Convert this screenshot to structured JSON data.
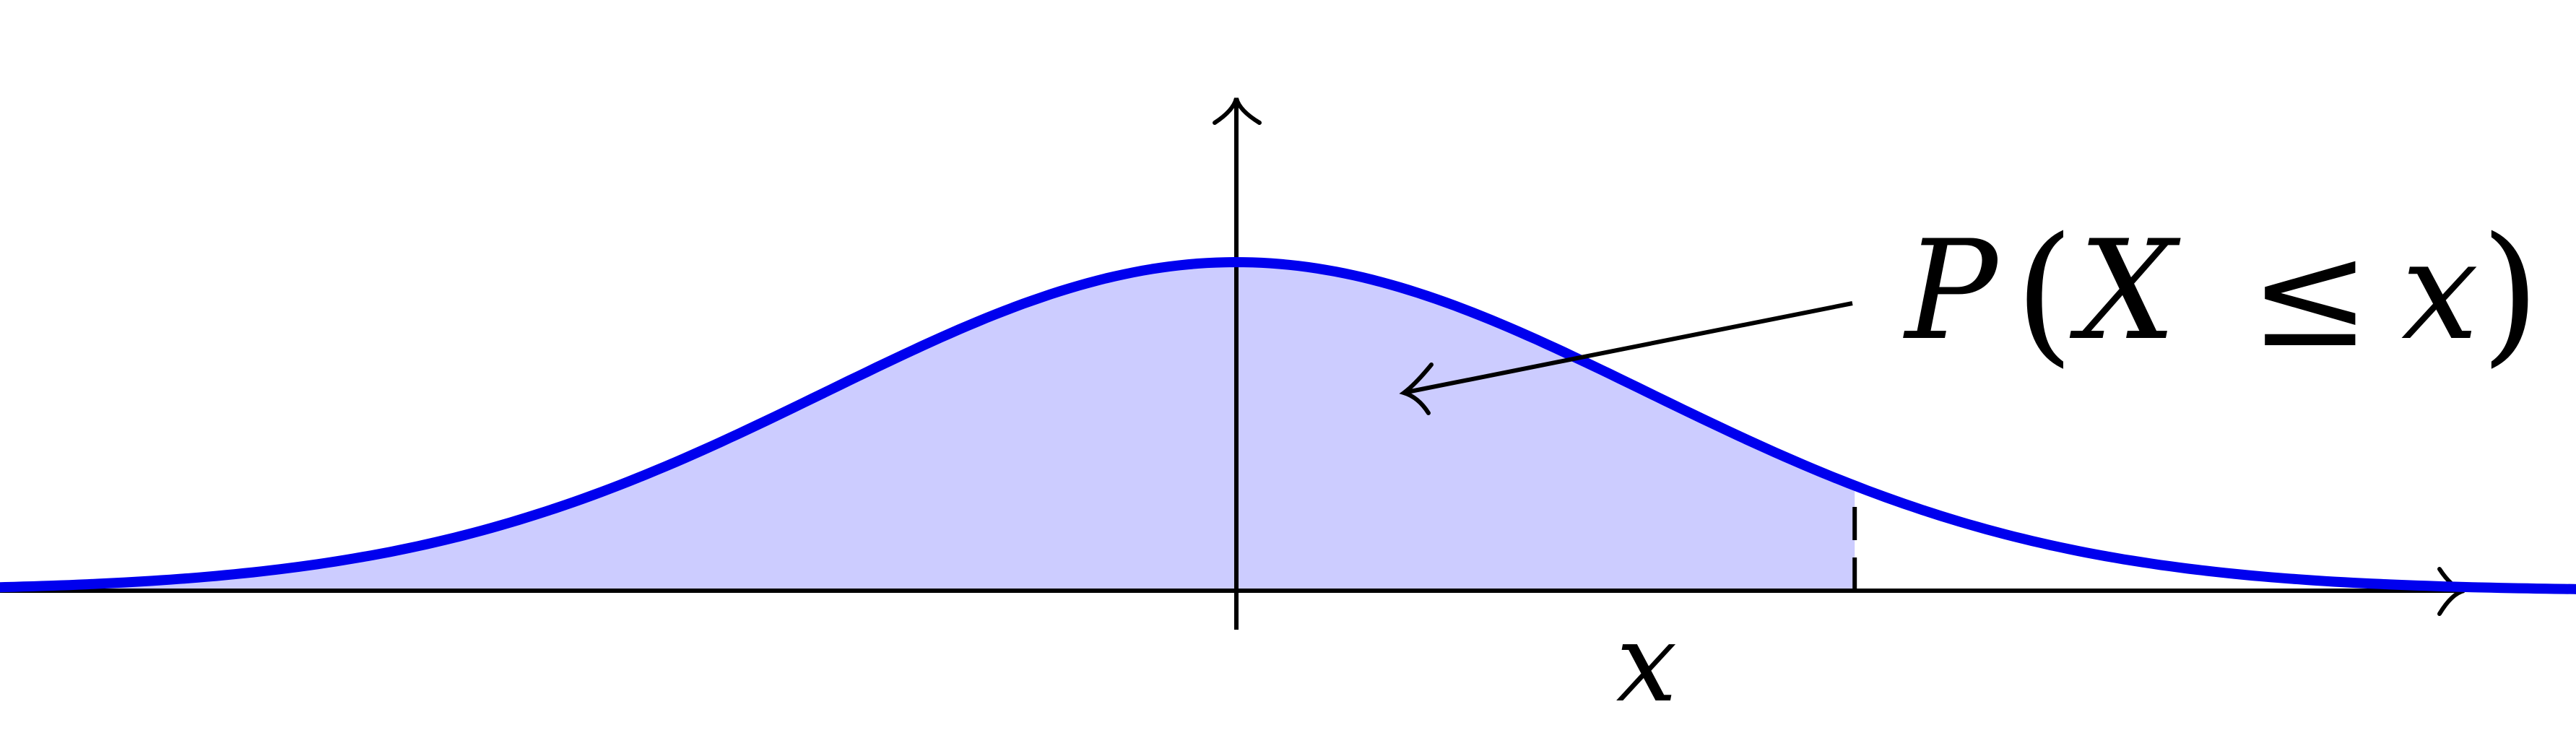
{
  "diagram": {
    "type": "normal-cdf-illustration",
    "labels": {
      "x_tick": "x",
      "area_annotation": {
        "P": "P",
        "open_paren": "(",
        "X": "X",
        "leq": "≤",
        "x": "x",
        "close_paren": ")"
      }
    },
    "curve": {
      "kind": "gaussian",
      "mean": 0,
      "std": 1,
      "domain": [
        -4.53,
        4.43
      ]
    },
    "shaded_region": {
      "from": -4.53,
      "to": 1.51
    },
    "threshold_x": 1.51,
    "colors": {
      "curve": "#0000ee",
      "shade": "#ccccff",
      "axes": "#000000",
      "arrow": "#000000",
      "text": "#000000"
    }
  }
}
